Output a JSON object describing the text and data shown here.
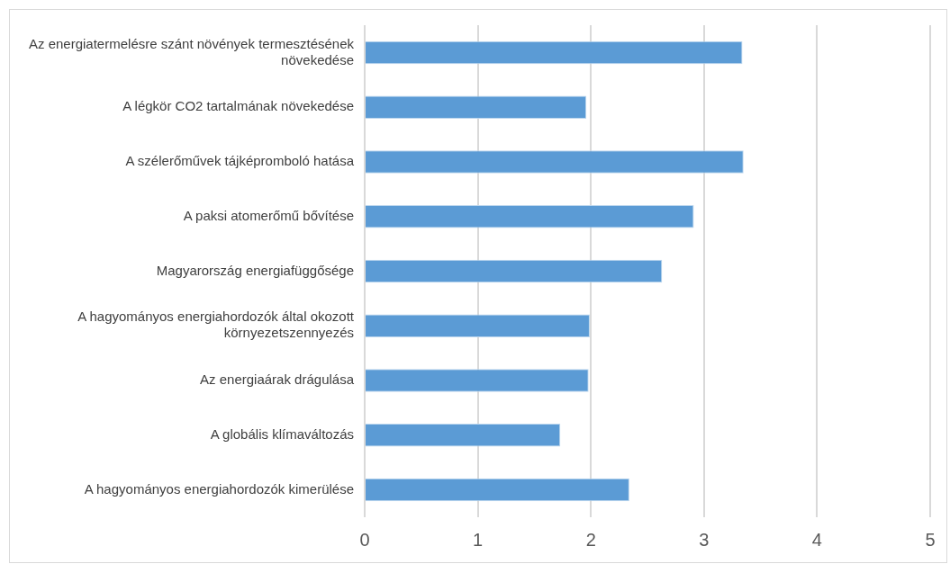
{
  "chart_data": {
    "type": "bar",
    "orientation": "horizontal",
    "categories": [
      "Az energiatermelésre szánt növények termesztésének növekedése",
      "A légkör CO2 tartalmának növekedése",
      "A szélerőművek tájképromboló hatása",
      "A paksi atomerőmű bővítése",
      "Magyarország energiafüggősége",
      "A hagyományos energiahordozók által okozott környezetszennyezés",
      "Az energiaárak drágulása",
      "A globális klímaváltozás",
      "A hagyományos energiahordozók kimerülése"
    ],
    "values": [
      3.34,
      1.96,
      3.35,
      2.91,
      2.63,
      1.99,
      1.98,
      1.73,
      2.34
    ],
    "color": "#5b9bd5",
    "xlim": [
      0,
      5
    ],
    "xticks": [
      0,
      1,
      2,
      3,
      4,
      5
    ],
    "grid": "x",
    "legend": false
  }
}
